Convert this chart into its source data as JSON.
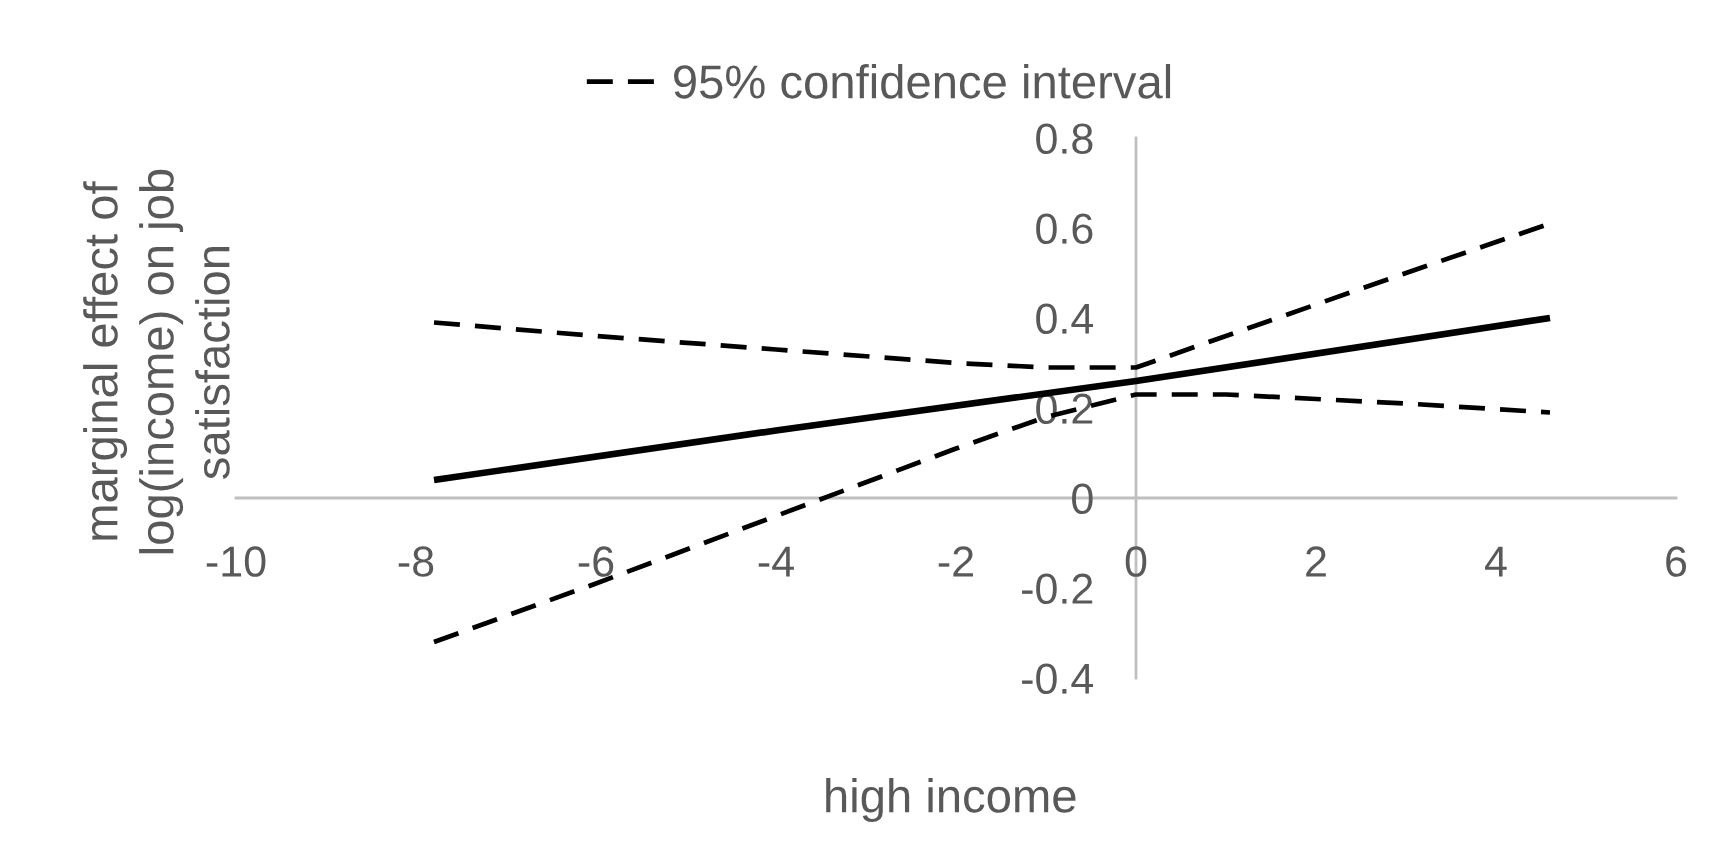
{
  "chart_data": {
    "type": "line",
    "legend": "top",
    "xlabel": "high income",
    "ylabel": "marginal effect of\nlog(income) on job\nsatisfaction",
    "xlim": [
      -10,
      6
    ],
    "xticks": [
      -10,
      -8,
      -6,
      -4,
      -2,
      0,
      2,
      4,
      6
    ],
    "ylim": [
      -0.4,
      0.8
    ],
    "yticks": [
      -0.4,
      -0.2,
      0,
      0.2,
      0.4,
      0.6,
      0.8
    ],
    "series": [
      {
        "x": [
          -7.8,
          -4,
          0,
          4.6
        ],
        "values": [
          0.04,
          0.15,
          0.26,
          0.4
        ],
        "color": "#000000",
        "line_style": "solid"
      },
      {
        "name": "95% confidence interval",
        "x": [
          -7.8,
          -6,
          -4,
          -2,
          -1,
          0,
          1,
          2,
          3,
          4.6
        ],
        "values": [
          0.39,
          0.36,
          0.33,
          0.3,
          0.29,
          0.29,
          0.36,
          0.43,
          0.5,
          0.61
        ],
        "color": "#000000",
        "line_style": "dashed"
      },
      {
        "x": [
          -7.8,
          -6,
          -4,
          -2,
          -1,
          0,
          1,
          2,
          3,
          4.6
        ],
        "values": [
          -0.32,
          -0.19,
          -0.04,
          0.11,
          0.18,
          0.23,
          0.23,
          0.22,
          0.21,
          0.19
        ],
        "color": "#000000",
        "line_style": "dashed"
      }
    ]
  }
}
